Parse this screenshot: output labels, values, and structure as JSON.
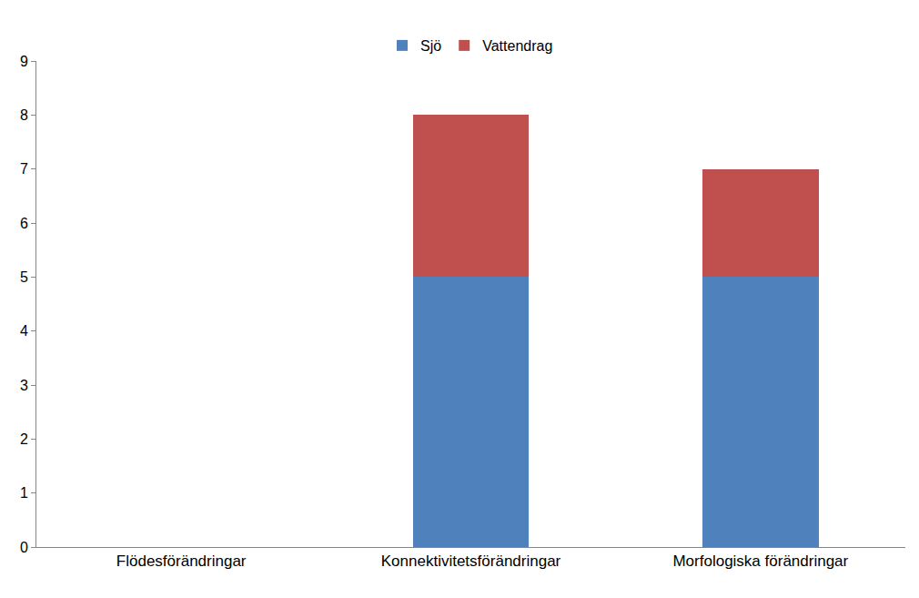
{
  "chart_data": {
    "type": "bar",
    "categories": [
      "Flödesförändringar",
      "Konnektivitetsförändringar",
      "Morfologiska förändringar"
    ],
    "series": [
      {
        "name": "Sjö",
        "color": "#4f81bd",
        "values": [
          0,
          5,
          5
        ]
      },
      {
        "name": "Vattendrag",
        "color": "#c0504d",
        "values": [
          0,
          3,
          2
        ]
      }
    ],
    "stacked": true,
    "ylim": [
      0,
      9
    ],
    "yticks": [
      0,
      1,
      2,
      3,
      4,
      5,
      6,
      7,
      8,
      9
    ],
    "grid": false,
    "legend": "top"
  }
}
